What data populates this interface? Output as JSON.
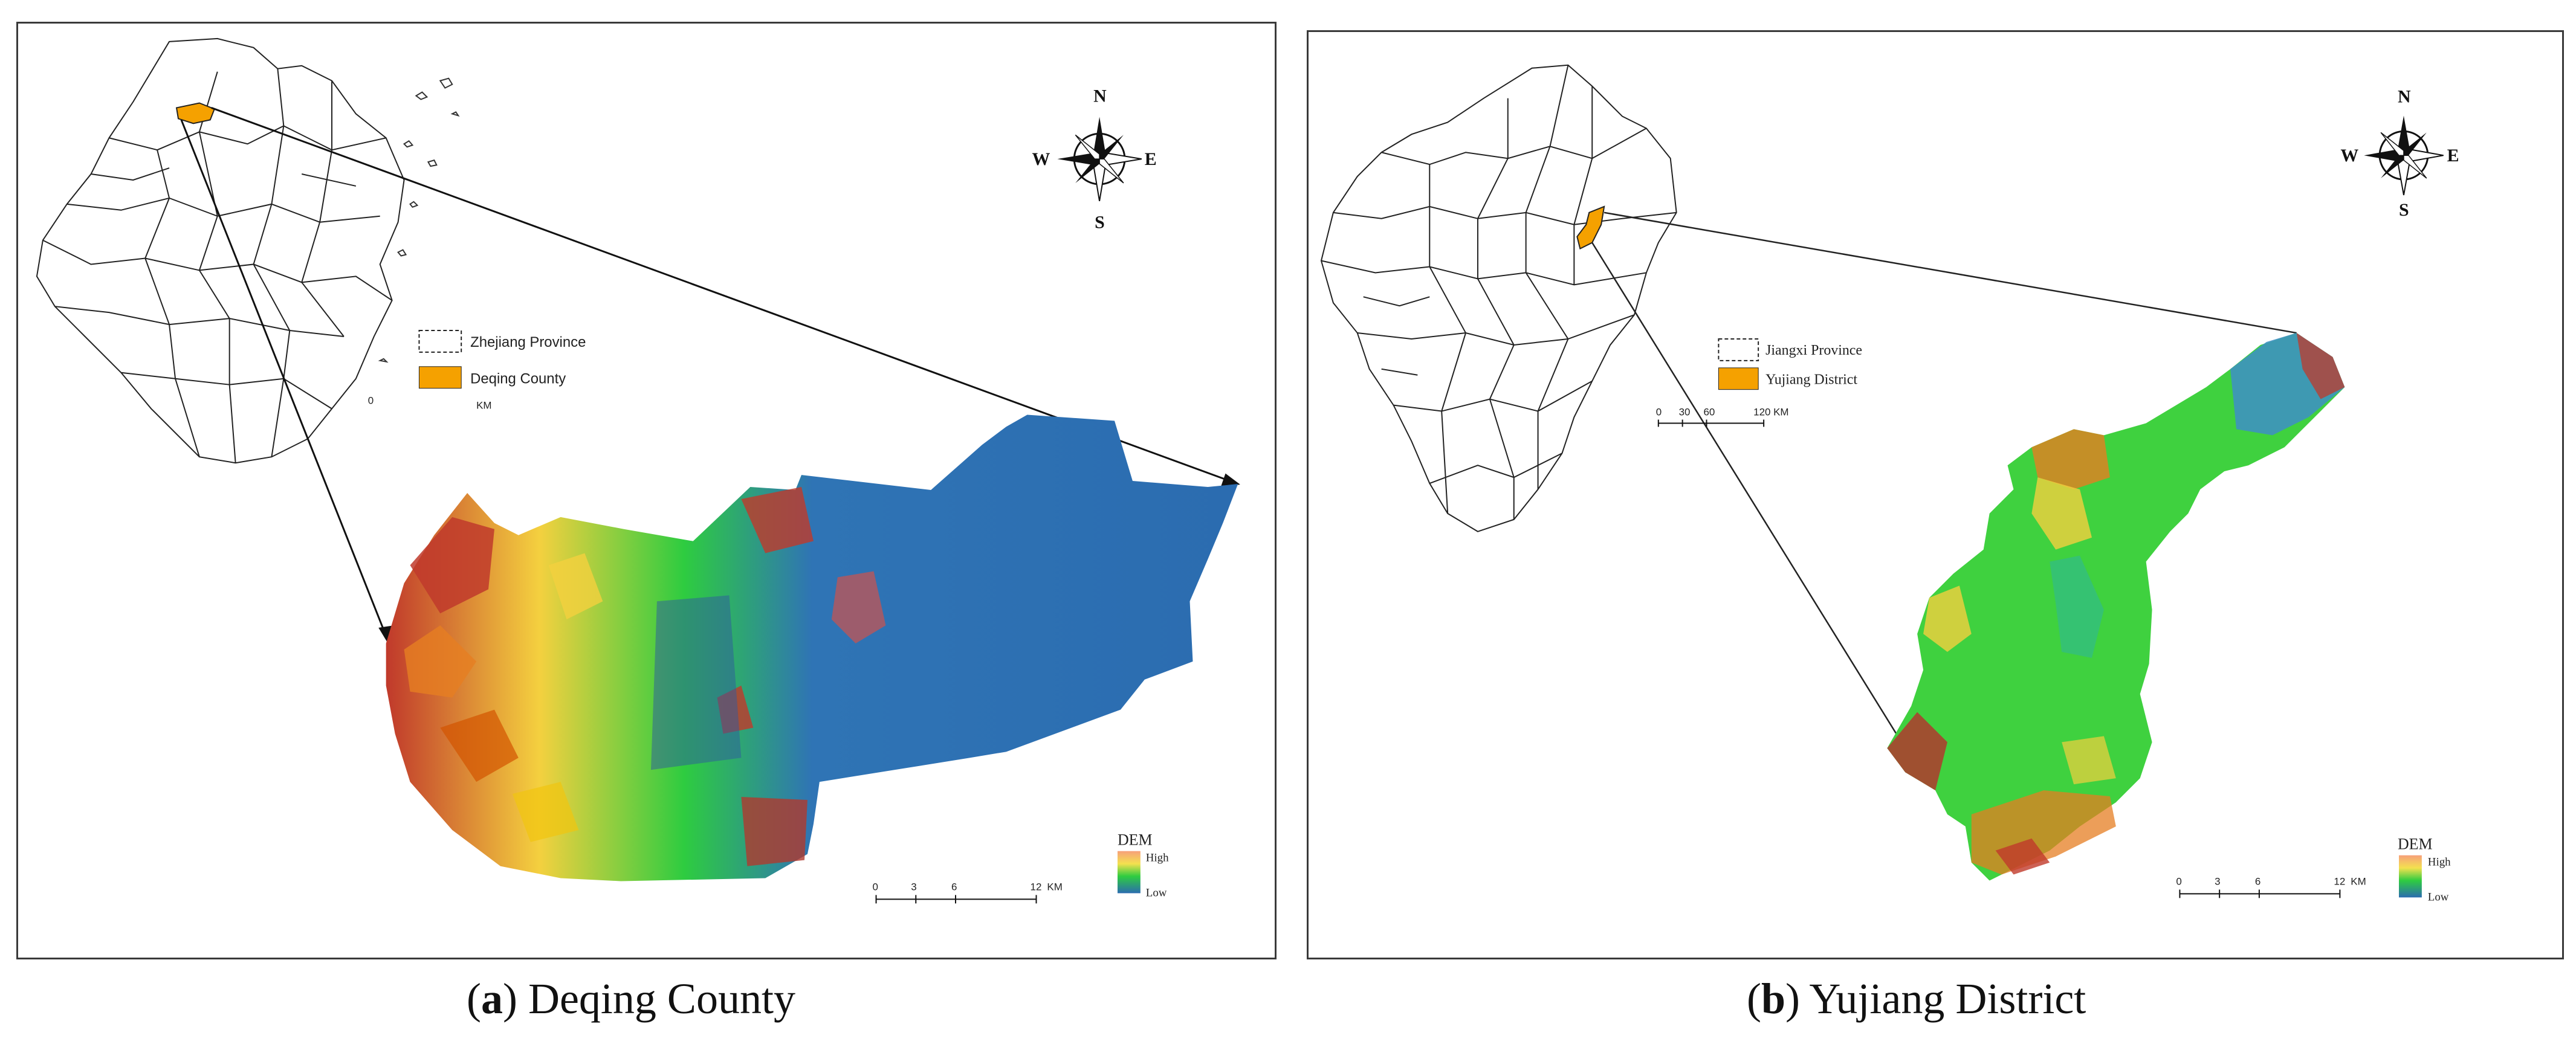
{
  "panel_a": {
    "legend": {
      "province": "Zhejiang Province",
      "county": "Deqing County"
    },
    "inset_scale": {
      "tick": "0",
      "unit": "KM"
    },
    "compass": {
      "n": "N",
      "s": "S",
      "e": "E",
      "w": "W"
    },
    "scale": {
      "t0": "0",
      "t1": "3",
      "t2": "6",
      "t3": "12",
      "unit": "KM"
    },
    "dem": {
      "title": "DEM",
      "high": "High",
      "low": "Low"
    },
    "caption": {
      "letter": "a",
      "text": "Deqing County"
    },
    "highlight_color": "#f5a100"
  },
  "panel_b": {
    "legend": {
      "province": "Jiangxi Province",
      "county": "Yujiang District"
    },
    "inset_scale": {
      "t0": "0",
      "t1": "30",
      "t2": "60",
      "t3": "120 KM"
    },
    "compass": {
      "n": "N",
      "s": "S",
      "e": "E",
      "w": "W"
    },
    "scale": {
      "t0": "0",
      "t1": "3",
      "t2": "6",
      "t3": "12",
      "unit": "KM"
    },
    "dem": {
      "title": "DEM",
      "high": "High",
      "low": "Low"
    },
    "caption": {
      "letter": "b",
      "text": "Yujiang District"
    },
    "highlight_color": "#f5a100"
  },
  "colors": {
    "dem_high": "#c0392b",
    "dem_mid_high": "#f4d03f",
    "dem_mid": "#2ecc40",
    "dem_low": "#2b6cb0"
  }
}
